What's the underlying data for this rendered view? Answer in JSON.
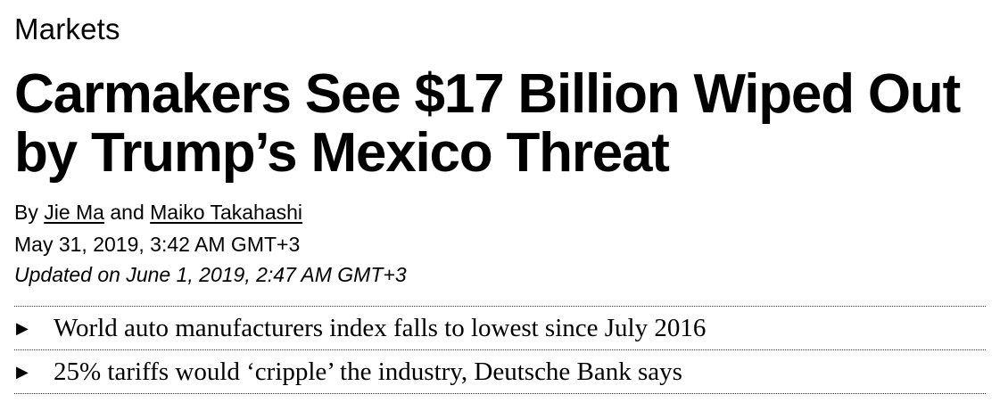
{
  "section": "Markets",
  "headline": "Carmakers See $17 Billion Wiped Out by Trump’s Mexico Threat",
  "byline": {
    "prefix": "By",
    "authors": [
      "Jie Ma",
      "Maiko Takahashi"
    ],
    "joiner": "and"
  },
  "published": "May 31, 2019, 3:42 AM GMT+3",
  "updated": "Updated on June 1, 2019, 2:47 AM GMT+3",
  "bullet_marker": "▶",
  "bullets": [
    "World auto manufacturers index falls to lowest since July 2016",
    "25% tariffs would ‘cripple’ the industry, Deutsche Bank says"
  ]
}
